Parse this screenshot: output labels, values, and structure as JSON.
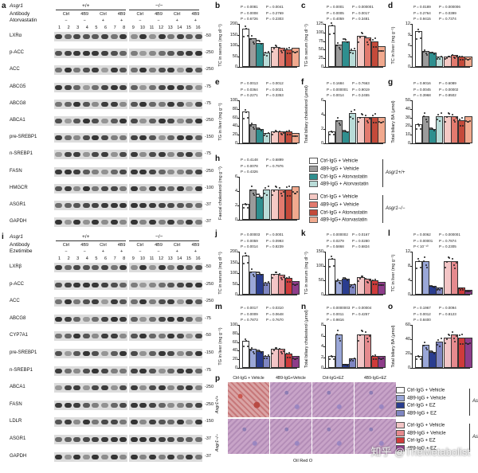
{
  "panel_a": {
    "letter": "a",
    "gene": "Asgr1",
    "genotype_wt": "+/+",
    "genotype_ko": "−/−",
    "antibody_label": "Antibody",
    "drug_label": "Atorvastatin",
    "antibodies": [
      "Ctrl",
      "4B9",
      "Ctrl",
      "4B9",
      "Ctrl",
      "4B9",
      "Ctrl",
      "4B9"
    ],
    "drug": [
      "−",
      "−",
      "+",
      "+",
      "−",
      "−",
      "+",
      "+"
    ],
    "lanes": [
      "1",
      "2",
      "3",
      "4",
      "5",
      "6",
      "7",
      "8",
      "9",
      "10",
      "11",
      "12",
      "13",
      "14",
      "15",
      "16"
    ],
    "proteins": [
      "LXRα",
      "p-ACC",
      "ACC",
      "ABCG5",
      "ABCG8",
      "ABCA1",
      "pre-SREBP1",
      "n-SREBP1",
      "FASN",
      "HMGCR",
      "ASGR1",
      "GAPDH"
    ],
    "mw": [
      "50",
      "250",
      "250",
      "75",
      "75",
      "250",
      "150",
      "75",
      "250",
      "100",
      "37",
      "37"
    ]
  },
  "panel_i": {
    "letter": "i",
    "gene": "Asgr1",
    "genotype_wt": "+/+",
    "genotype_ko": "−/−",
    "antibody_label": "Antibody",
    "drug_label": "Ezetimibe",
    "antibodies": [
      "Ctrl",
      "4B9",
      "Ctrl",
      "4B9",
      "Ctrl",
      "4B9",
      "Ctrl",
      "4B9"
    ],
    "drug": [
      "−",
      "−",
      "+",
      "+",
      "−",
      "−",
      "+",
      "+"
    ],
    "lanes": [
      "1",
      "2",
      "3",
      "4",
      "5",
      "6",
      "7",
      "8",
      "9",
      "10",
      "11",
      "12",
      "13",
      "14",
      "15",
      "16"
    ],
    "proteins": [
      "LXRβ",
      "p-ACC",
      "ACC",
      "ABCG8",
      "CYP7A1",
      "pre-SREBP1",
      "n-SREBP1",
      "ABCA1",
      "FASN",
      "LDLR",
      "ASGR1",
      "GAPDH"
    ],
    "mw": [
      "50",
      "250",
      "250",
      "75",
      "50",
      "150",
      "75",
      "250",
      "250",
      "150",
      "37",
      "37"
    ]
  },
  "legend_top": {
    "items": [
      "Ctrl-IgG + Vehicle",
      "4B9-IgG + Vehicle",
      "Ctrl-IgG + Atorvastatin",
      "4B9-IgG + Atorvastatin",
      "Ctrl-IgG + Vehicle",
      "4B9-IgG + Vehicle",
      "Ctrl-IgG + Atorvastatin",
      "4B9-IgG+ Atorvastatin"
    ],
    "group_wt": "Asgr1+/+",
    "group_ko": "Asgr1−/−",
    "colors": [
      "#ffffff",
      "#9b9b9b",
      "#2f8f8f",
      "#b9dcd8",
      "#f5c9c4",
      "#e27a6e",
      "#c44a3a",
      "#f1a98e"
    ]
  },
  "legend_bottom": {
    "items": [
      "Ctrl-IgG + Vehicle",
      "4B9-IgG + Vehicle",
      "Ctrl-IgG + EZ",
      "4B9-IgG + EZ",
      "Ctrl-IgG + Vehicle",
      "4B9-IgG + Vehicle",
      "Ctrl-IgG + EZ",
      "4B9-IgG + EZ"
    ],
    "group_wt": "Asgr1+/+",
    "group_ko": "Asgr1−/−",
    "colors": [
      "#ffffff",
      "#9aa7d8",
      "#2a3d8f",
      "#7f86c2",
      "#f3c5c6",
      "#e58a8e",
      "#cf3b3b",
      "#8e3d8a"
    ]
  },
  "panel_p": {
    "letter": "p",
    "columns": [
      "Ctrl-IgG + Vehicle",
      "4B9-IgG+Vehicle",
      "Ctrl-IgG+EZ",
      "4B9-IgG+EZ"
    ],
    "rows": [
      "Asgr1+/+",
      "Asgr1−/−"
    ],
    "stain": "Oil Red O"
  },
  "watermark": "知乎 @TheMetabolist",
  "chart_data": [
    {
      "panel": "b",
      "type": "bar",
      "ylabel": "TC in serum (mg dl⁻¹)",
      "ylim": [
        0,
        200
      ],
      "ticks": [
        0,
        50,
        100,
        150,
        200
      ],
      "values": [
        170,
        125,
        105,
        60,
        85,
        80,
        75,
        80
      ],
      "pvalues": [
        "P = 0.0081",
        "P = 0.0041",
        "P = 0.0008",
        "P = 0.2769",
        "P = 0.6726",
        "P = 0.2303"
      ]
    },
    {
      "panel": "c",
      "type": "bar",
      "ylabel": "TG in serum (mg dl⁻¹)",
      "ylim": [
        0,
        125
      ],
      "ticks": [
        0,
        25,
        50,
        75,
        100,
        125
      ],
      "values": [
        115,
        60,
        70,
        45,
        85,
        80,
        70,
        55
      ],
      "pvalues": [
        "P = 0.0001",
        "P = 0.000001",
        "P = 0.0005",
        "P = 0.0017",
        "P = 0.4059",
        "P = 0.3481"
      ]
    },
    {
      "panel": "d",
      "type": "bar",
      "ylabel": "TC in liver (mg g⁻¹)",
      "ylim": [
        0,
        12
      ],
      "ticks": [
        0,
        3,
        6,
        9,
        12
      ],
      "values": [
        9.5,
        4,
        3.5,
        2.5,
        2.5,
        3,
        2.5,
        2.5
      ],
      "pvalues": [
        "P = 0.0189",
        "P = 0.000006",
        "P = 0.2764",
        "P = 0.0399",
        "P = 0.9415",
        "P = 0.7374"
      ]
    },
    {
      "panel": "e",
      "type": "bar",
      "ylabel": "TG in liver (mg g⁻¹)",
      "ylim": [
        0,
        100
      ],
      "ticks": [
        0,
        20,
        40,
        60,
        80,
        100
      ],
      "values": [
        70,
        40,
        30,
        20,
        25,
        25,
        25,
        20
      ],
      "pvalues": [
        "P = 0.0013",
        "P = 0.0012",
        "P = 0.0364",
        "P = 0.0021",
        "P = 0.2271",
        "P = 0.3353"
      ]
    },
    {
      "panel": "f",
      "type": "bar",
      "ylabel": "Total biliary cholesterol (μmol)",
      "ylim": [
        0,
        6
      ],
      "ticks": [
        0,
        2,
        4,
        6
      ],
      "values": [
        1.5,
        3,
        1.5,
        4,
        3.5,
        3.5,
        3.5,
        3.5
      ],
      "pvalues": [
        "P = 0.1684",
        "P = 0.7663",
        "P = 0.000001",
        "P = 0.9019",
        "P = 0.0014",
        "P = 0.2455"
      ]
    },
    {
      "panel": "g",
      "type": "bar",
      "ylabel": "Total biliary BA (μmol)",
      "ylim": [
        0,
        50
      ],
      "ticks": [
        0,
        10,
        20,
        30,
        40,
        50
      ],
      "values": [
        20,
        30,
        15,
        30,
        30,
        30,
        25,
        30
      ],
      "pvalues": [
        "P = 0.9016",
        "P = 0.6089",
        "P = 0.0045",
        "P = 0.00002",
        "P = 0.3968",
        "P = 0.8502"
      ]
    },
    {
      "panel": "h",
      "type": "bar",
      "ylabel": "Faecal cholesterol (mg g⁻¹)",
      "ylim": [
        0,
        6
      ],
      "ticks": [
        0,
        2,
        4,
        6
      ],
      "values": [
        2,
        4,
        3,
        4,
        4,
        4,
        4,
        4.5
      ],
      "pvalues": [
        "P = 0.4148",
        "P = 0.6899",
        "P = 0.0078",
        "P = 0.7976",
        "P = 0.4326"
      ]
    },
    {
      "panel": "j",
      "type": "bar",
      "ylabel": "TC in serum (mg dl⁻¹)",
      "ylim": [
        0,
        200
      ],
      "ticks": [
        0,
        50,
        100,
        150,
        200
      ],
      "values": [
        175,
        100,
        90,
        50,
        90,
        85,
        70,
        55
      ],
      "pvalues": [
        "P = 0.00003",
        "P = 0.0001",
        "P = 0.0059",
        "P = 0.0993",
        "P = 0.0014",
        "P = 0.8239"
      ]
    },
    {
      "panel": "k",
      "type": "bar",
      "ylabel": "TG in serum (mg dl⁻¹)",
      "ylim": [
        0,
        150
      ],
      "ticks": [
        0,
        50,
        100,
        150
      ],
      "values": [
        120,
        45,
        50,
        30,
        55,
        50,
        45,
        40
      ],
      "pvalues": [
        "P = 0.000002",
        "P = 0.0167",
        "P = 0.0279",
        "P = 0.0280",
        "P = 0.5868",
        "P = 0.6824"
      ]
    },
    {
      "panel": "l",
      "type": "bar",
      "ylabel": "TC in liver (mg g⁻¹)",
      "ylim": [
        0,
        12
      ],
      "ticks": [
        0,
        4,
        8,
        12
      ],
      "values": [
        9,
        9,
        2,
        1.5,
        9,
        9,
        1.5,
        1
      ],
      "pvalues": [
        "P = 0.0062",
        "P = 0.000001",
        "P = 0.00001",
        "P = 0.7874",
        "P < 10⁻¹⁰",
        "P = 0.2305"
      ]
    },
    {
      "panel": "m",
      "type": "bar",
      "ylabel": "TG in liver (mg g⁻¹)",
      "ylim": [
        0,
        100
      ],
      "ticks": [
        0,
        20,
        40,
        60,
        80,
        100
      ],
      "values": [
        60,
        40,
        35,
        25,
        40,
        40,
        30,
        25
      ],
      "pvalues": [
        "P = 0.0017",
        "P = 0.0310",
        "P = 0.0009",
        "P = 0.0648",
        "P = 0.7873",
        "P = 0.7670"
      ]
    },
    {
      "panel": "n",
      "type": "bar",
      "ylabel": "Total biliary cholesterol (μmol)",
      "ylim": [
        0,
        8
      ],
      "ticks": [
        0,
        2,
        4,
        6,
        8
      ],
      "values": [
        2,
        6,
        0.5,
        1.5,
        6,
        6,
        2,
        2
      ],
      "pvalues": [
        "P = 0.0000003",
        "P = 0.00004",
        "P = 0.0011",
        "P = 0.4257",
        "P = 0.9816"
      ]
    },
    {
      "panel": "o",
      "type": "bar",
      "ylabel": "Total biliary BA (μmol)",
      "ylim": [
        0,
        60
      ],
      "ticks": [
        0,
        20,
        40,
        60
      ],
      "values": [
        15,
        30,
        20,
        35,
        40,
        45,
        40,
        40
      ],
      "pvalues": [
        "P = 0.1967",
        "P = 0.0094",
        "P = 0.0012",
        "P = 0.8123",
        "P = 0.8400"
      ]
    }
  ]
}
